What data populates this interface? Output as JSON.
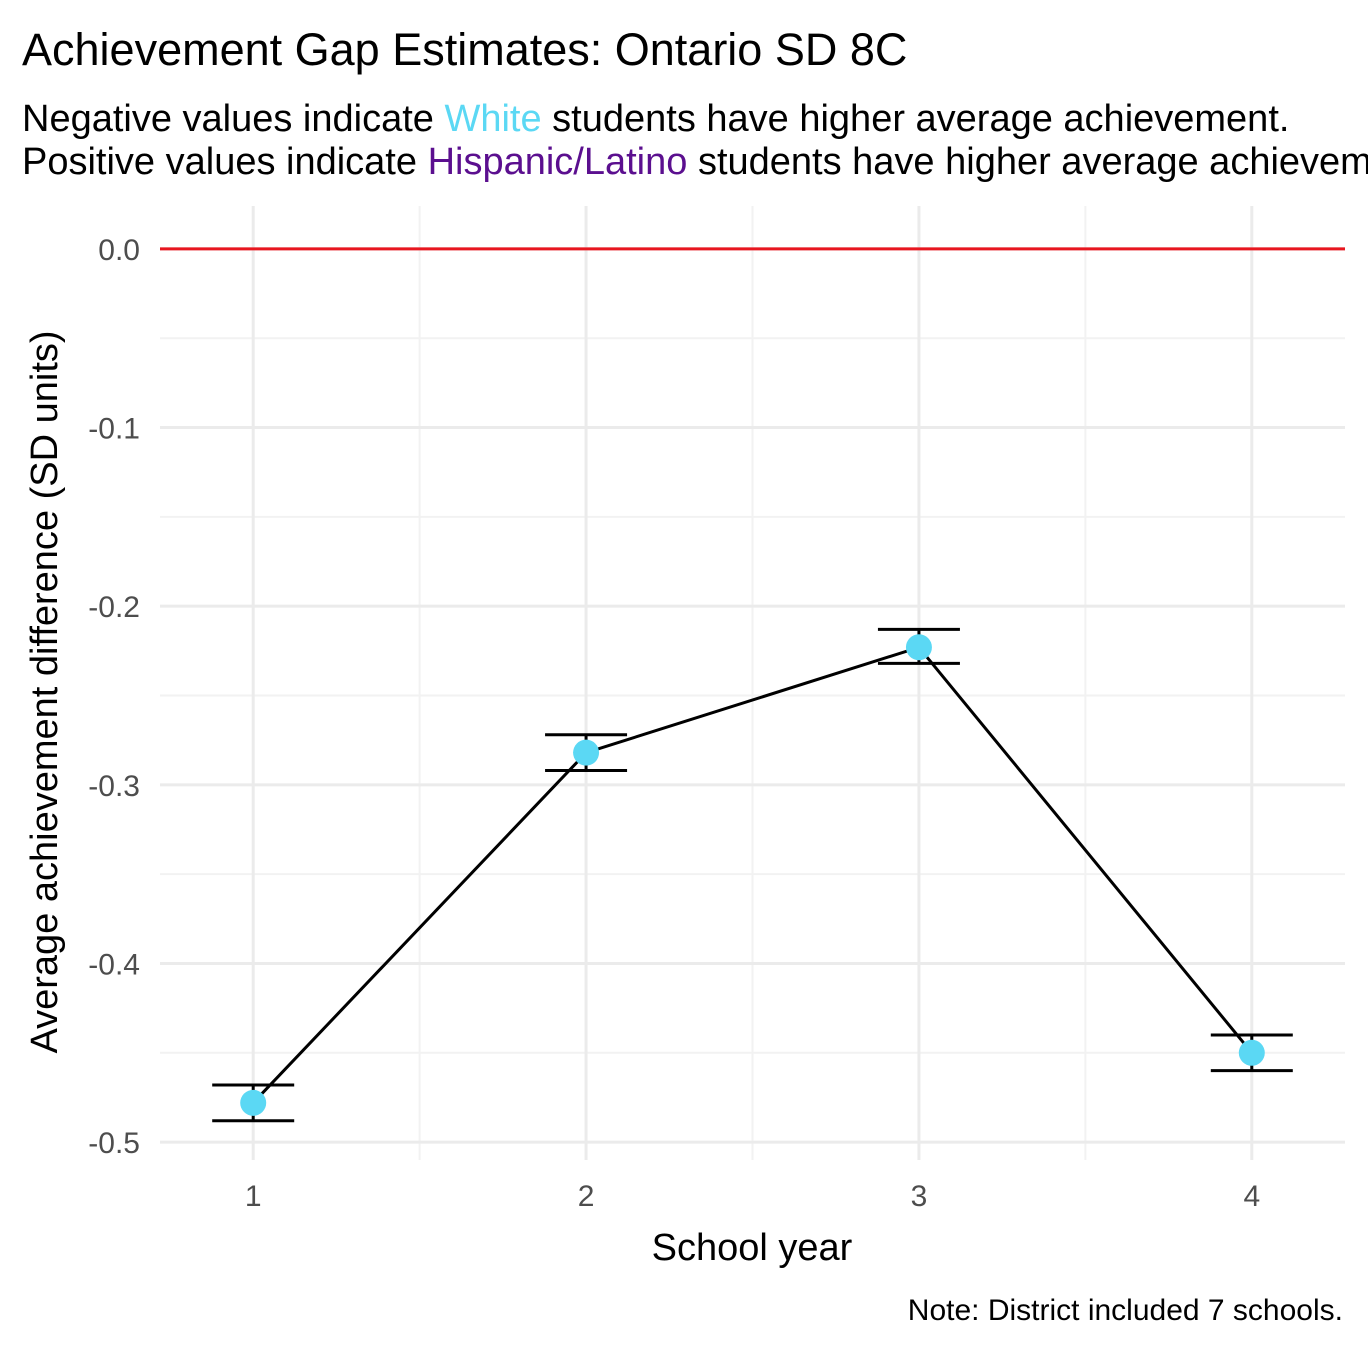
{
  "chart_data": {
    "type": "line",
    "title": "Achievement Gap Estimates: Ontario SD 8C",
    "subtitle": {
      "line1": {
        "before": "Negative values indicate ",
        "group": "White",
        "after": " students have higher average achievement."
      },
      "line2": {
        "before": "Positive values indicate ",
        "group": "Hispanic/Latino",
        "after": " students have higher average achievement."
      }
    },
    "xlabel": "School year",
    "ylabel": "Average achievement difference (SD units)",
    "caption": "Note: District included 7 schools.",
    "x": [
      1,
      2,
      3,
      4
    ],
    "x_tick_labels": [
      "1",
      "2",
      "3",
      "4"
    ],
    "y_ticks": [
      0.0,
      -0.1,
      -0.2,
      -0.3,
      -0.4,
      -0.5
    ],
    "y_tick_labels": [
      "0.0",
      "-0.1",
      "-0.2",
      "-0.3",
      "-0.4",
      "-0.5"
    ],
    "xlim": [
      0.72,
      4.28
    ],
    "ylim": [
      -0.51,
      0.024
    ],
    "grid": true,
    "reference_line": {
      "y": 0.0,
      "color": "#e8161f"
    },
    "series": [
      {
        "values": [
          -0.478,
          -0.282,
          -0.223,
          -0.45
        ],
        "error_low": [
          -0.488,
          -0.292,
          -0.232,
          -0.46
        ],
        "error_high": [
          -0.468,
          -0.272,
          -0.213,
          -0.44
        ],
        "point_color": "#5bd8f4",
        "line_color": "#000000"
      }
    ],
    "colors": {
      "white_group": "#5bd8f4",
      "hispanic_group": "#5b0f8f"
    }
  }
}
